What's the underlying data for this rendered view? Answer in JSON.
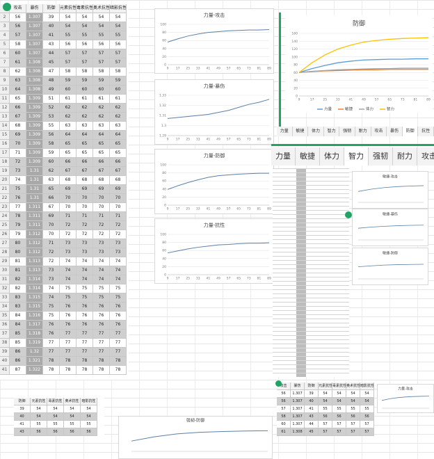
{
  "sheet": {
    "columns": [
      "攻击",
      "暴伤",
      "防御",
      "元素抗性",
      "毒素抗性",
      "奥术抗性",
      "暗影抗性"
    ],
    "row_numbers": [
      1,
      2,
      3,
      4,
      5,
      6,
      7,
      8,
      9,
      10,
      11,
      12,
      13,
      14,
      15,
      16,
      17,
      18,
      19,
      20,
      21,
      22,
      23,
      24,
      25,
      26,
      27,
      28,
      29,
      30,
      31,
      32,
      33,
      34,
      35,
      36,
      37,
      38,
      39,
      40,
      41
    ],
    "rows": [
      [
        56,
        1.307,
        39,
        54,
        54,
        54,
        54
      ],
      [
        56,
        1.307,
        40,
        54,
        54,
        54,
        54
      ],
      [
        57,
        1.307,
        41,
        55,
        55,
        55,
        55
      ],
      [
        58,
        1.307,
        43,
        56,
        56,
        56,
        56
      ],
      [
        60,
        1.307,
        44,
        57,
        57,
        57,
        57
      ],
      [
        61,
        1.308,
        45,
        57,
        57,
        57,
        57
      ],
      [
        62,
        1.308,
        47,
        58,
        58,
        58,
        58
      ],
      [
        63,
        1.308,
        48,
        59,
        59,
        59,
        59
      ],
      [
        64,
        1.308,
        49,
        60,
        60,
        60,
        60
      ],
      [
        65,
        1.309,
        51,
        61,
        61,
        61,
        61
      ],
      [
        66,
        1.309,
        52,
        62,
        62,
        62,
        62
      ],
      [
        67,
        1.309,
        53,
        62,
        62,
        62,
        62
      ],
      [
        68,
        1.309,
        55,
        63,
        63,
        63,
        63
      ],
      [
        69,
        1.309,
        56,
        64,
        64,
        64,
        64
      ],
      [
        70,
        1.309,
        58,
        65,
        65,
        65,
        65
      ],
      [
        71,
        1.309,
        59,
        65,
        65,
        65,
        65
      ],
      [
        72,
        1.309,
        60,
        66,
        66,
        66,
        66
      ],
      [
        73,
        1.31,
        62,
        67,
        67,
        67,
        67
      ],
      [
        74,
        1.31,
        63,
        68,
        68,
        68,
        68
      ],
      [
        75,
        1.31,
        65,
        69,
        69,
        69,
        69
      ],
      [
        76,
        1.31,
        66,
        70,
        70,
        70,
        70
      ],
      [
        77,
        1.311,
        67,
        70,
        70,
        70,
        70
      ],
      [
        78,
        1.311,
        69,
        71,
        71,
        71,
        71
      ],
      [
        79,
        1.311,
        70,
        72,
        72,
        72,
        72
      ],
      [
        79,
        1.312,
        70,
        72,
        72,
        72,
        72
      ],
      [
        80,
        1.312,
        71,
        73,
        73,
        73,
        73
      ],
      [
        80,
        1.312,
        72,
        73,
        73,
        73,
        73
      ],
      [
        81,
        1.313,
        72,
        74,
        74,
        74,
        74
      ],
      [
        81,
        1.313,
        73,
        74,
        74,
        74,
        74
      ],
      [
        82,
        1.314,
        73,
        74,
        74,
        74,
        74
      ],
      [
        82,
        1.314,
        74,
        75,
        75,
        75,
        75
      ],
      [
        83,
        1.315,
        74,
        75,
        75,
        75,
        75
      ],
      [
        83,
        1.315,
        75,
        76,
        76,
        76,
        76
      ],
      [
        84,
        1.316,
        75,
        76,
        76,
        76,
        76
      ],
      [
        84,
        1.317,
        76,
        76,
        76,
        76,
        76
      ],
      [
        85,
        1.318,
        76,
        77,
        77,
        77,
        77
      ],
      [
        85,
        1.319,
        77,
        77,
        77,
        77,
        77
      ],
      [
        86,
        1.32,
        77,
        77,
        77,
        77,
        77
      ],
      [
        86,
        1.321,
        78,
        78,
        78,
        78,
        78
      ],
      [
        87,
        1.322,
        78,
        78,
        78,
        78,
        78
      ]
    ]
  },
  "charts": [
    {
      "type": "line",
      "title": "力量-攻击",
      "color": "#5b7fa6",
      "categories": [
        9,
        17,
        25,
        33,
        41,
        49,
        57,
        65,
        73,
        81,
        89
      ],
      "values": [
        56,
        64,
        71,
        76,
        80,
        82,
        84,
        85,
        86,
        86,
        87
      ],
      "ylim": [
        0,
        100
      ],
      "yticks": [
        0,
        20,
        40,
        60,
        80,
        100
      ]
    },
    {
      "type": "line",
      "title": "力量-暴伤",
      "color": "#5b7fa6",
      "categories": [
        9,
        17,
        25,
        33,
        41,
        49,
        57,
        65,
        73,
        81,
        89
      ],
      "values": [
        1.307,
        1.308,
        1.309,
        1.31,
        1.311,
        1.313,
        1.315,
        1.318,
        1.321,
        1.323,
        1.326
      ],
      "ylim": [
        1.29,
        1.33
      ],
      "yticks": [
        1.29,
        1.3,
        1.31,
        1.32,
        1.33
      ]
    },
    {
      "type": "line",
      "title": "力量-防御",
      "color": "#5b7fa6",
      "categories": [
        9,
        17,
        25,
        33,
        41,
        49,
        57,
        65,
        73,
        81,
        89
      ],
      "values": [
        39,
        48,
        56,
        63,
        69,
        73,
        75,
        77,
        78,
        79,
        79
      ],
      "ylim": [
        0,
        100
      ],
      "yticks": [
        0,
        20,
        40,
        60,
        80,
        100
      ]
    },
    {
      "type": "line",
      "title": "力量-抗性",
      "color": "#5b7fa6",
      "categories": [
        9,
        17,
        25,
        33,
        41,
        49,
        57,
        65,
        73,
        81,
        89
      ],
      "values": [
        54,
        59,
        64,
        68,
        71,
        74,
        75,
        77,
        78,
        78,
        79
      ],
      "ylim": [
        0,
        100
      ],
      "yticks": [
        0,
        20,
        40,
        60,
        80,
        100
      ]
    }
  ],
  "defense_chart": {
    "type": "line",
    "title": "防御",
    "categories": [
      9,
      17,
      25,
      33,
      41,
      49,
      57,
      65,
      73,
      81,
      89
    ],
    "ylim": [
      0,
      160
    ],
    "yticks": [
      0,
      20,
      40,
      60,
      80,
      100,
      120,
      140,
      160
    ],
    "legend": "bottom",
    "series": [
      {
        "name": "力量",
        "color": "#5b9bd5",
        "values": [
          60,
          70,
          78,
          85,
          89,
          92,
          93,
          94,
          94,
          95,
          95
        ]
      },
      {
        "name": "敏捷",
        "color": "#ed7d31",
        "values": [
          60,
          62,
          64,
          65,
          66,
          67,
          67,
          68,
          68,
          68,
          68
        ]
      },
      {
        "name": "体力",
        "color": "#a5a5a5",
        "values": [
          60,
          63,
          65,
          67,
          68,
          69,
          70,
          70,
          71,
          71,
          71
        ]
      },
      {
        "name": "智力",
        "color": "#ffc000",
        "values": [
          60,
          85,
          105,
          120,
          130,
          138,
          142,
          145,
          147,
          148,
          149
        ]
      }
    ]
  },
  "tabs": [
    "力量",
    "敏捷",
    "体力",
    "智力",
    "强韧",
    "耐力",
    "攻击",
    "暴伤",
    "防御",
    "抗性"
  ],
  "mini_charts": [
    {
      "type": "line",
      "title": "敏捷-攻击",
      "color": "#5b7fa6",
      "values": [
        56,
        68,
        76,
        81,
        84,
        86
      ],
      "ylim": [
        0,
        100
      ]
    },
    {
      "type": "line",
      "title": "敏捷-暴伤",
      "color": "#5b7fa6",
      "values": [
        60,
        66,
        70,
        73,
        75,
        76
      ],
      "ylim": [
        0,
        100
      ]
    },
    {
      "type": "line",
      "title": "敏捷-防御",
      "color": "#5b7fa6",
      "values": [
        62,
        67,
        71,
        73,
        74,
        75
      ],
      "ylim": [
        0,
        100
      ]
    }
  ],
  "bottom_table": {
    "columns": [
      "防御",
      "元素抗性",
      "毒素抗性",
      "奥术抗性",
      "暗影抗性"
    ],
    "rows": [
      [
        39,
        54,
        54,
        54,
        54
      ],
      [
        40,
        54,
        54,
        54,
        54
      ],
      [
        41,
        55,
        55,
        55,
        55
      ],
      [
        43,
        56,
        56,
        56,
        56
      ]
    ]
  },
  "bottom_chart": {
    "type": "line",
    "title": "强韧-防御",
    "color": "#5b7fa6",
    "values": [
      39,
      55,
      66,
      72,
      75,
      77,
      78
    ],
    "ylim": [
      0,
      100
    ]
  },
  "bottom_right_table": {
    "columns": [
      "攻击",
      "暴伤",
      "防御",
      "元素抗性",
      "毒素抗性",
      "奥术抗性",
      "暗影抗性"
    ],
    "rows": [
      [
        56,
        1.307,
        39,
        54,
        54,
        54,
        54
      ],
      [
        56,
        1.307,
        40,
        54,
        54,
        54,
        54
      ],
      [
        57,
        1.307,
        41,
        55,
        55,
        55,
        55
      ],
      [
        58,
        1.307,
        43,
        56,
        56,
        56,
        56
      ],
      [
        60,
        1.307,
        44,
        57,
        57,
        57,
        57
      ],
      [
        61,
        1.308,
        45,
        57,
        57,
        57,
        57
      ]
    ]
  },
  "bottom_right_chart": {
    "type": "line",
    "title": "力量-攻击",
    "color": "#5b7fa6",
    "values": [
      56,
      68,
      76,
      81,
      84,
      86,
      87
    ],
    "ylim": [
      0,
      100
    ]
  }
}
